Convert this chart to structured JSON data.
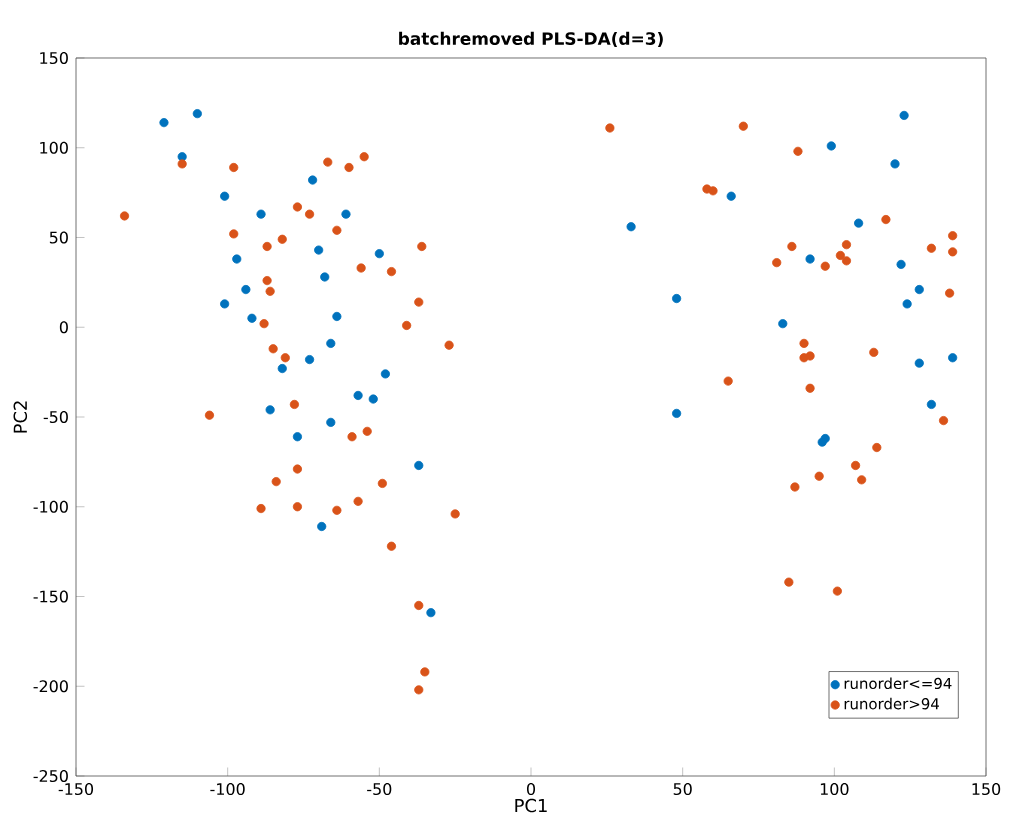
{
  "chart_data": {
    "type": "scatter",
    "title": "batchremoved PLS-DA(d=3)",
    "xlabel": "PC1",
    "ylabel": "PC2",
    "xlim": [
      -150,
      150
    ],
    "xticks": [
      -150,
      -100,
      -50,
      0,
      50,
      100,
      150
    ],
    "ylim": [
      -250,
      150
    ],
    "yticks": [
      -250,
      -200,
      -150,
      -100,
      -50,
      0,
      50,
      100,
      150
    ],
    "grid": false,
    "legend": "bottom right",
    "marker": "circle",
    "series": [
      {
        "name": "runorder<=94",
        "color": "#0072bd",
        "x": [
          -121,
          -110,
          -115,
          -101,
          -89,
          -97,
          -94,
          -101,
          -92,
          -82,
          -73,
          -86,
          -77,
          -72,
          -61,
          -70,
          -50,
          -68,
          -64,
          -66,
          -48,
          -57,
          -52,
          -66,
          -37,
          -69,
          -33,
          123,
          99,
          120,
          66,
          33,
          108,
          92,
          122,
          128,
          124,
          48,
          83,
          128,
          139,
          132,
          48,
          97,
          96
        ],
        "values": [
          114,
          119,
          95,
          73,
          63,
          38,
          21,
          13,
          5,
          -23,
          -18,
          -46,
          -61,
          82,
          63,
          43,
          41,
          28,
          6,
          -9,
          -26,
          -38,
          -40,
          -53,
          -77,
          -111,
          -159,
          118,
          101,
          91,
          73,
          56,
          58,
          38,
          35,
          21,
          13,
          16,
          2,
          -20,
          -17,
          -43,
          -48,
          -62,
          -64
        ]
      },
      {
        "name": "runorder>94",
        "color": "#d95319",
        "x": [
          -134,
          -115,
          -98,
          -98,
          -77,
          -73,
          -87,
          -82,
          -87,
          -86,
          -88,
          -85,
          -81,
          -78,
          -106,
          -67,
          -60,
          -55,
          -64,
          -36,
          -56,
          -46,
          -37,
          -41,
          -27,
          -54,
          -59,
          -77,
          -84,
          -49,
          -89,
          -77,
          -64,
          -57,
          -25,
          -46,
          -37,
          -35,
          -37,
          26,
          70,
          88,
          58,
          60,
          117,
          104,
          86,
          139,
          132,
          139,
          81,
          97,
          102,
          104,
          138,
          90,
          90,
          92,
          113,
          65,
          92,
          136,
          114,
          107,
          95,
          109,
          87,
          85,
          101
        ],
        "values": [
          62,
          91,
          89,
          52,
          67,
          63,
          45,
          49,
          26,
          20,
          2,
          -12,
          -17,
          -43,
          -49,
          92,
          89,
          95,
          54,
          45,
          33,
          31,
          14,
          1,
          -10,
          -58,
          -61,
          -79,
          -86,
          -87,
          -101,
          -100,
          -102,
          -97,
          -104,
          -122,
          -155,
          -192,
          -202,
          111,
          112,
          98,
          77,
          76,
          60,
          46,
          45,
          51,
          44,
          42,
          36,
          34,
          40,
          37,
          19,
          -9,
          -17,
          -16,
          -14,
          -30,
          -34,
          -52,
          -67,
          -77,
          -83,
          -85,
          -89,
          -142,
          -147
        ]
      }
    ]
  }
}
